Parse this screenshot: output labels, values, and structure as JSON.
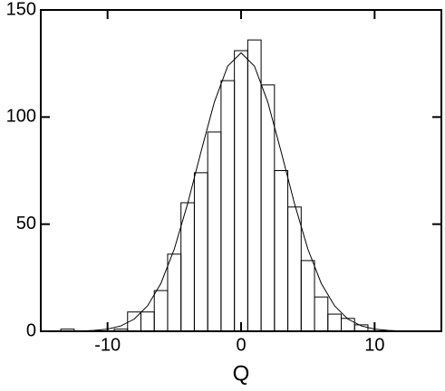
{
  "chart_data": {
    "type": "histogram",
    "x_label": "Q",
    "bins": [
      -13.5,
      -12.5,
      -11.5,
      -10.5,
      -9.5,
      -8.5,
      -7.5,
      -6.5,
      -5.5,
      -4.5,
      -3.5,
      -2.5,
      -1.5,
      -0.5,
      0.5,
      1.5,
      2.5,
      3.5,
      4.5,
      5.5,
      6.5,
      7.5,
      8.5,
      9.5
    ],
    "counts": [
      1,
      0,
      0,
      0,
      1,
      9,
      9,
      19,
      36,
      60,
      74,
      93,
      117,
      131,
      136,
      115,
      75,
      58,
      33,
      16,
      8,
      6,
      3
    ],
    "fit": {
      "x": [
        -12,
        -11,
        -10,
        -9,
        -8,
        -7,
        -6,
        -5,
        -4,
        -3,
        -2,
        -1,
        0,
        1,
        2,
        3,
        4,
        5,
        6,
        7,
        8,
        9,
        10,
        11,
        12
      ],
      "values": [
        0.1,
        0.4,
        1.0,
        2.5,
        5.7,
        11.9,
        22.4,
        38.4,
        59.6,
        83.8,
        107.0,
        123.8,
        130,
        123.8,
        107.0,
        83.8,
        59.6,
        38.4,
        22.4,
        11.9,
        5.7,
        2.5,
        1.0,
        0.4,
        0.1
      ]
    },
    "color": "#000000",
    "xlim": [
      -15,
      15
    ],
    "xticks": [
      -10,
      0,
      10
    ],
    "ylim": [
      0,
      150
    ],
    "yticks": [
      0,
      50,
      100,
      150
    ]
  }
}
